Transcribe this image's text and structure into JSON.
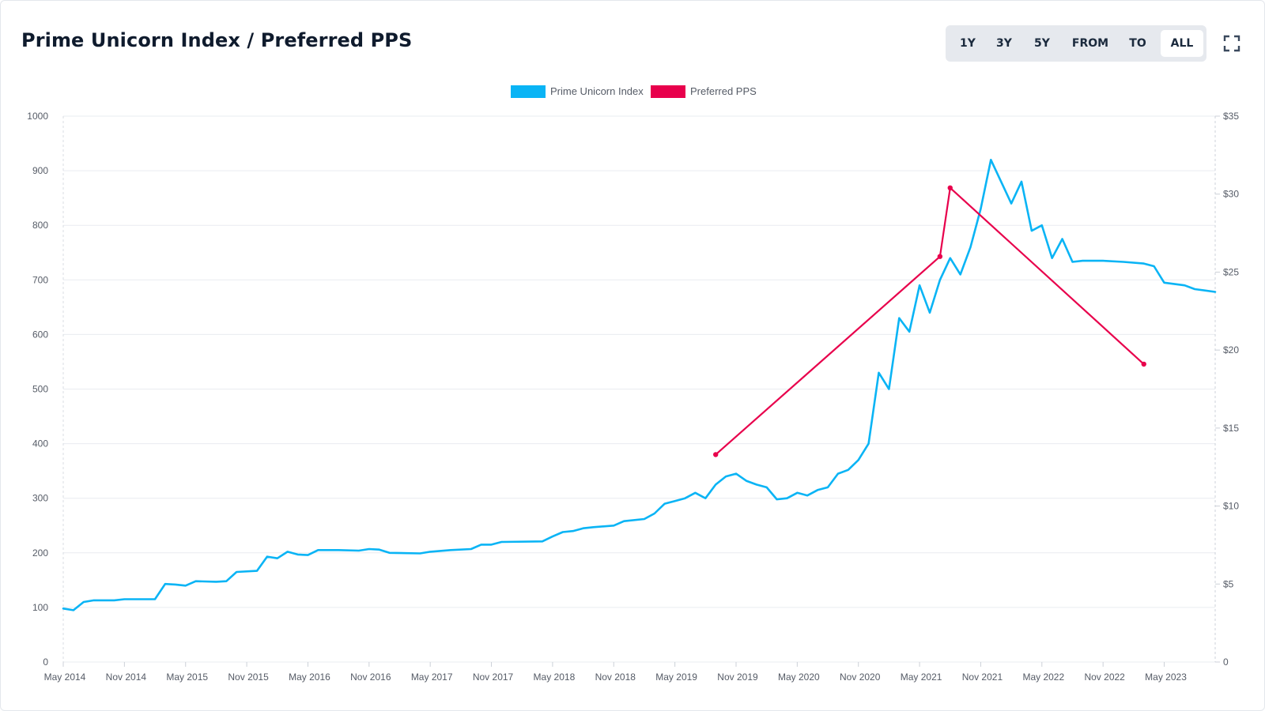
{
  "header": {
    "title": "Prime Unicorn Index / Preferred PPS",
    "ranges": [
      {
        "label": "1Y",
        "active": false
      },
      {
        "label": "3Y",
        "active": false
      },
      {
        "label": "5Y",
        "active": false
      },
      {
        "label": "FROM",
        "active": false
      },
      {
        "label": "TO",
        "active": false
      },
      {
        "label": "ALL",
        "active": true
      }
    ],
    "fullscreen_icon": "expand-icon"
  },
  "colors": {
    "index": "#0ab4f5",
    "pps": "#e8004c",
    "grid": "#e9ecf0",
    "title": "#0f1b2d"
  },
  "chart_data": {
    "type": "line",
    "title": "Prime Unicorn Index / Preferred PPS",
    "legend": [
      "Prime Unicorn Index",
      "Preferred PPS"
    ],
    "legend_position": "top-center",
    "grid": true,
    "x_tick_labels": [
      "May 2014",
      "Nov 2014",
      "May 2015",
      "Nov 2015",
      "May 2016",
      "Nov 2016",
      "May 2017",
      "Nov 2017",
      "May 2018",
      "Nov 2018",
      "May 2019",
      "Nov 2019",
      "May 2020",
      "Nov 2020",
      "May 2021",
      "Nov 2021",
      "May 2022",
      "Nov 2022",
      "May 2023"
    ],
    "xlim": [
      "2014-05",
      "2023-10"
    ],
    "y_left": {
      "ticks": [
        "0",
        "100",
        "200",
        "300",
        "400",
        "500",
        "600",
        "700",
        "800",
        "900",
        "1000"
      ],
      "ylim": [
        0,
        1000
      ]
    },
    "y_right": {
      "ticks": [
        "0",
        "$5",
        "$10",
        "$15",
        "$20",
        "$25",
        "$30",
        "$35"
      ],
      "ylim": [
        0,
        35
      ]
    },
    "series": [
      {
        "name": "Prime Unicorn Index",
        "axis": "left",
        "points": [
          [
            "2014-05",
            98
          ],
          [
            "2014-06",
            95
          ],
          [
            "2014-07",
            110
          ],
          [
            "2014-08",
            113
          ],
          [
            "2014-10",
            113
          ],
          [
            "2014-11",
            115
          ],
          [
            "2015-02",
            115
          ],
          [
            "2015-03",
            143
          ],
          [
            "2015-04",
            142
          ],
          [
            "2015-05",
            140
          ],
          [
            "2015-06",
            148
          ],
          [
            "2015-08",
            147
          ],
          [
            "2015-09",
            148
          ],
          [
            "2015-10",
            165
          ],
          [
            "2015-12",
            167
          ],
          [
            "2016-01",
            193
          ],
          [
            "2016-02",
            190
          ],
          [
            "2016-03",
            202
          ],
          [
            "2016-04",
            197
          ],
          [
            "2016-05",
            196
          ],
          [
            "2016-06",
            205
          ],
          [
            "2016-08",
            205
          ],
          [
            "2016-10",
            204
          ],
          [
            "2016-11",
            207
          ],
          [
            "2016-12",
            206
          ],
          [
            "2017-01",
            200
          ],
          [
            "2017-04",
            199
          ],
          [
            "2017-05",
            202
          ],
          [
            "2017-07",
            205
          ],
          [
            "2017-09",
            207
          ],
          [
            "2017-10",
            215
          ],
          [
            "2017-11",
            215
          ],
          [
            "2017-12",
            220
          ],
          [
            "2018-04",
            221
          ],
          [
            "2018-05",
            230
          ],
          [
            "2018-06",
            238
          ],
          [
            "2018-07",
            240
          ],
          [
            "2018-08",
            245
          ],
          [
            "2018-09",
            247
          ],
          [
            "2018-11",
            250
          ],
          [
            "2018-12",
            258
          ],
          [
            "2019-02",
            262
          ],
          [
            "2019-03",
            272
          ],
          [
            "2019-04",
            290
          ],
          [
            "2019-05",
            295
          ],
          [
            "2019-06",
            300
          ],
          [
            "2019-07",
            310
          ],
          [
            "2019-08",
            300
          ],
          [
            "2019-09",
            325
          ],
          [
            "2019-10",
            340
          ],
          [
            "2019-11",
            345
          ],
          [
            "2019-12",
            332
          ],
          [
            "2020-01",
            325
          ],
          [
            "2020-02",
            320
          ],
          [
            "2020-03",
            298
          ],
          [
            "2020-04",
            300
          ],
          [
            "2020-05",
            310
          ],
          [
            "2020-06",
            305
          ],
          [
            "2020-07",
            315
          ],
          [
            "2020-08",
            320
          ],
          [
            "2020-09",
            345
          ],
          [
            "2020-10",
            352
          ],
          [
            "2020-11",
            370
          ],
          [
            "2020-12",
            400
          ],
          [
            "2021-01",
            530
          ],
          [
            "2021-02",
            500
          ],
          [
            "2021-03",
            630
          ],
          [
            "2021-04",
            605
          ],
          [
            "2021-05",
            690
          ],
          [
            "2021-06",
            640
          ],
          [
            "2021-07",
            700
          ],
          [
            "2021-08",
            740
          ],
          [
            "2021-09",
            710
          ],
          [
            "2021-10",
            760
          ],
          [
            "2021-11",
            830
          ],
          [
            "2021-12",
            920
          ],
          [
            "2022-01",
            880
          ],
          [
            "2022-02",
            840
          ],
          [
            "2022-03",
            880
          ],
          [
            "2022-04",
            790
          ],
          [
            "2022-05",
            800
          ],
          [
            "2022-06",
            740
          ],
          [
            "2022-07",
            775
          ],
          [
            "2022-08",
            733
          ],
          [
            "2022-09",
            735
          ],
          [
            "2022-11",
            735
          ],
          [
            "2023-01",
            733
          ],
          [
            "2023-03",
            730
          ],
          [
            "2023-04",
            725
          ],
          [
            "2023-05",
            695
          ],
          [
            "2023-07",
            690
          ],
          [
            "2023-08",
            683
          ],
          [
            "2023-10",
            678
          ]
        ]
      },
      {
        "name": "Preferred PPS",
        "axis": "right",
        "points": [
          [
            "2019-09",
            13.3
          ],
          [
            "2021-07",
            26
          ],
          [
            "2021-08",
            30.4
          ],
          [
            "2023-03",
            19.1
          ]
        ]
      }
    ]
  }
}
